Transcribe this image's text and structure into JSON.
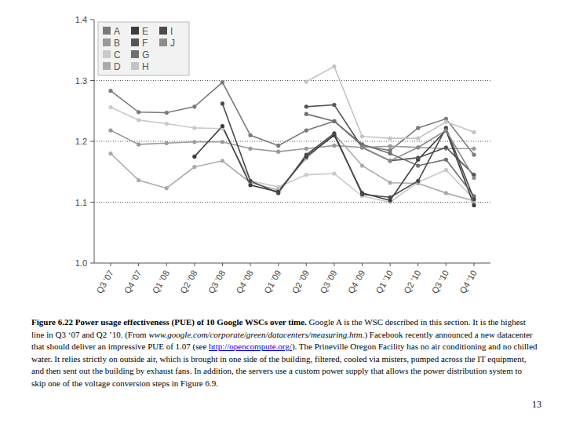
{
  "chart_data": {
    "type": "line",
    "categories": [
      "Q3 '07",
      "Q4 '07",
      "Q1 '08",
      "Q2 '08",
      "Q3 '08",
      "Q4 '08",
      "Q1 '09",
      "Q2 '09",
      "Q3 '09",
      "Q4 '09",
      "Q1 '10",
      "Q2 '10",
      "Q3 '10",
      "Q4 '10"
    ],
    "series": [
      {
        "name": "A",
        "color": "#7a7a7a",
        "values": [
          1.283,
          1.248,
          1.247,
          1.257,
          1.297,
          1.21,
          1.193,
          1.218,
          1.233,
          1.193,
          1.185,
          1.222,
          1.237,
          1.178
        ]
      },
      {
        "name": "B",
        "color": "#9a9a9a",
        "values": [
          1.218,
          1.195,
          1.197,
          1.199,
          1.199,
          1.188,
          1.183,
          1.188,
          1.193,
          1.19,
          1.192,
          1.19,
          1.188,
          1.188
        ]
      },
      {
        "name": "C",
        "color": "#cacaca",
        "values": [
          1.256,
          1.235,
          1.229,
          1.222,
          1.221,
          1.135,
          1.125,
          1.145,
          1.147,
          1.11,
          1.1,
          1.133,
          1.153,
          1.105
        ]
      },
      {
        "name": "D",
        "color": "#ababab",
        "values": [
          1.18,
          1.136,
          1.123,
          1.158,
          1.168,
          1.132,
          1.12,
          1.172,
          1.212,
          1.16,
          1.132,
          1.131,
          1.115,
          1.102
        ]
      },
      {
        "name": "E",
        "color": "#3c3c3c",
        "values": [
          null,
          null,
          null,
          1.175,
          1.225,
          1.128,
          1.117,
          1.175,
          1.21,
          1.115,
          1.103,
          1.17,
          1.218,
          1.095
        ]
      },
      {
        "name": "F",
        "color": "#555555",
        "values": [
          null,
          null,
          null,
          null,
          null,
          null,
          null,
          1.257,
          1.26,
          1.19,
          1.168,
          1.173,
          1.19,
          1.145
        ]
      },
      {
        "name": "G",
        "color": "#707070",
        "values": [
          null,
          null,
          null,
          null,
          null,
          null,
          null,
          1.245,
          1.233,
          1.195,
          1.18,
          1.16,
          1.17,
          1.11
        ]
      },
      {
        "name": "H",
        "color": "#c4c4c4",
        "values": [
          null,
          null,
          null,
          null,
          null,
          null,
          null,
          1.298,
          1.323,
          1.208,
          1.205,
          1.205,
          1.232,
          1.215
        ]
      },
      {
        "name": "I",
        "color": "#4a4a4a",
        "values": [
          null,
          null,
          null,
          null,
          1.262,
          1.135,
          1.115,
          1.178,
          1.213,
          1.113,
          1.108,
          1.135,
          1.222,
          1.105
        ]
      },
      {
        "name": "J",
        "color": "#8c8c8c",
        "values": [
          null,
          null,
          null,
          null,
          null,
          null,
          null,
          null,
          null,
          1.19,
          1.168,
          1.19,
          1.218,
          1.14
        ]
      }
    ],
    "ylim": [
      1.0,
      1.4
    ],
    "yticks": [
      {
        "value": 1,
        "label": "1.0"
      },
      1.1,
      1.2,
      1.3,
      1.4
    ],
    "grid": true,
    "legend": "upper-left",
    "marker": "circle"
  },
  "caption": [
    {
      "style": "bold",
      "text": "Figure 6.22 Power usage effectiveness (PUE) of 10 Google WSCs over time."
    },
    {
      "style": "normal",
      "text": " Google A is the WSC described in this section. It is the highest line in Q3 ‘07 and Q2 ’10. (From "
    },
    {
      "style": "italic",
      "text": "www.google.com/corporate/green/datacenters/measuring.htm"
    },
    {
      "style": "normal",
      "text": ".) Facebook recently announced a new datacenter that should deliver an impressive PUE of 1.07 (see "
    },
    {
      "style": "link",
      "text": "http://opencompute.org/"
    },
    {
      "style": "normal",
      "text": "). The Prineville Oregon Facility has no air conditioning and no chilled water. It relies strictly on outside air, which is brought in one side of the building, filtered, cooled via misters, pumped across the IT equipment, and then sent out the building by exhaust fans. In addition, the servers use a custom power supply that allows the power distribution system to skip one of the voltage conversion steps in Figure 6.9."
    }
  ],
  "page_number": "13"
}
